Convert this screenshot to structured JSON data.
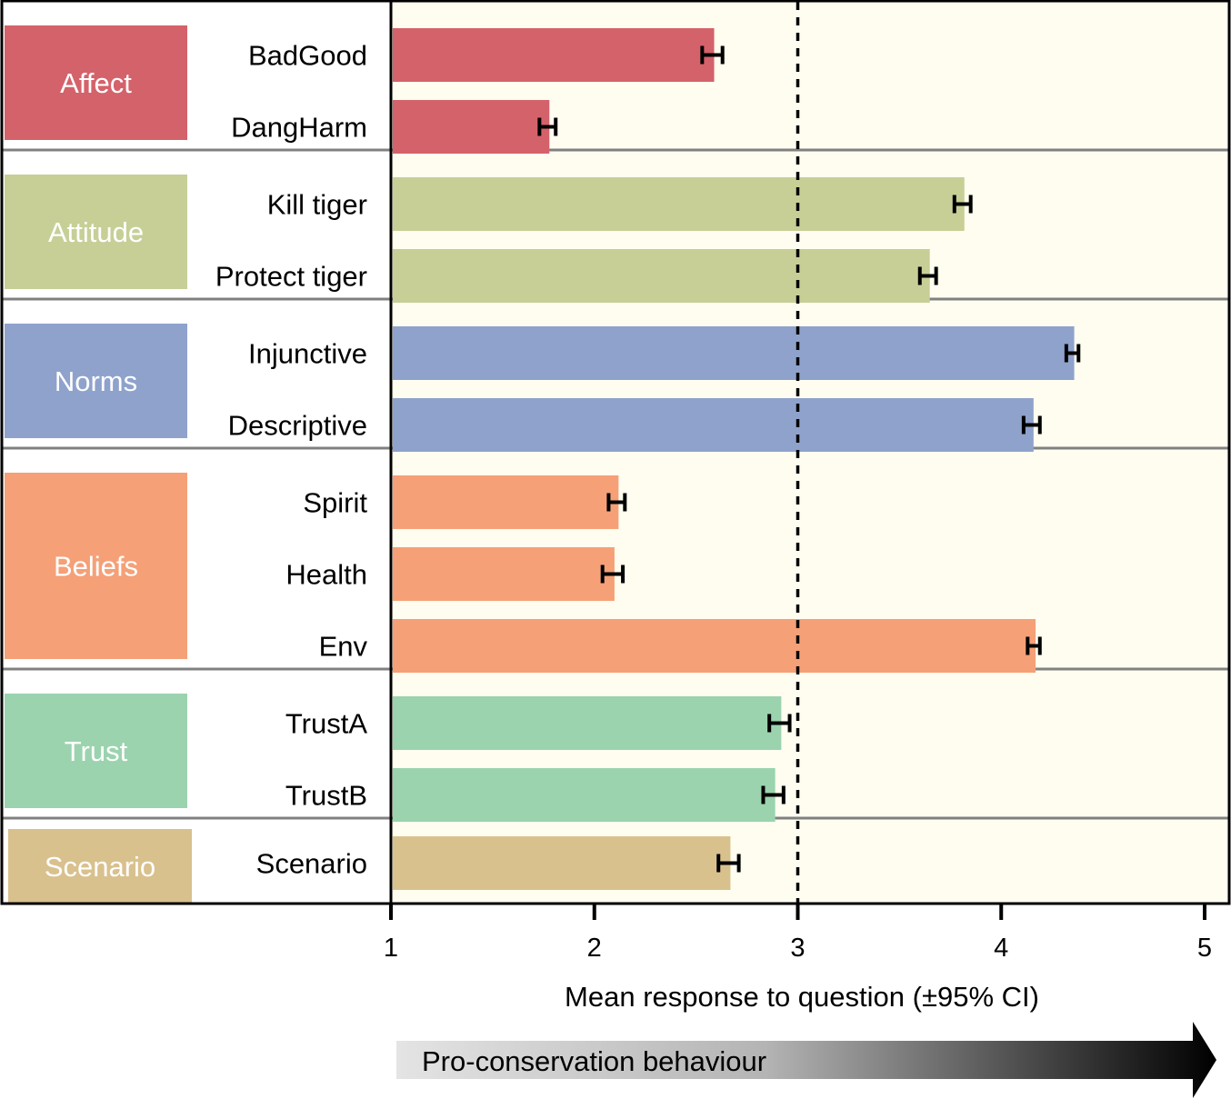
{
  "chart_data": {
    "type": "bar",
    "orientation": "horizontal",
    "xlabel": "Mean response to question (±95% CI)",
    "xlim": [
      1,
      5
    ],
    "xticks": [
      1,
      2,
      3,
      4,
      5
    ],
    "reference_line": 3,
    "arrow_label": "Pro-conservation behaviour",
    "groups": [
      {
        "name": "Affect",
        "color": "#d4626a",
        "items": [
          {
            "label": "BadGood",
            "value": 2.58,
            "ci": 0.05
          },
          {
            "label": "DangHarm",
            "value": 1.77,
            "ci": 0.04
          }
        ]
      },
      {
        "name": "Attitude",
        "color": "#c7cf97",
        "items": [
          {
            "label": "Kill tiger",
            "value": 3.81,
            "ci": 0.04
          },
          {
            "label": "Protect tiger",
            "value": 3.64,
            "ci": 0.04
          }
        ]
      },
      {
        "name": "Norms",
        "color": "#8ea2cc",
        "items": [
          {
            "label": "Injunctive",
            "value": 4.35,
            "ci": 0.03
          },
          {
            "label": "Descriptive",
            "value": 4.15,
            "ci": 0.04
          }
        ]
      },
      {
        "name": "Beliefs",
        "color": "#f5a077",
        "items": [
          {
            "label": "Spirit",
            "value": 2.11,
            "ci": 0.04
          },
          {
            "label": "Health",
            "value": 2.09,
            "ci": 0.05
          },
          {
            "label": "Env",
            "value": 4.16,
            "ci": 0.03
          }
        ]
      },
      {
        "name": "Trust",
        "color": "#9bd3ae",
        "items": [
          {
            "label": "TrustA",
            "value": 2.91,
            "ci": 0.05
          },
          {
            "label": "TrustB",
            "value": 2.88,
            "ci": 0.05
          }
        ]
      },
      {
        "name": "Scenario",
        "color": "#d9c18e",
        "items": [
          {
            "label": "Scenario",
            "value": 2.66,
            "ci": 0.05
          }
        ]
      }
    ]
  }
}
